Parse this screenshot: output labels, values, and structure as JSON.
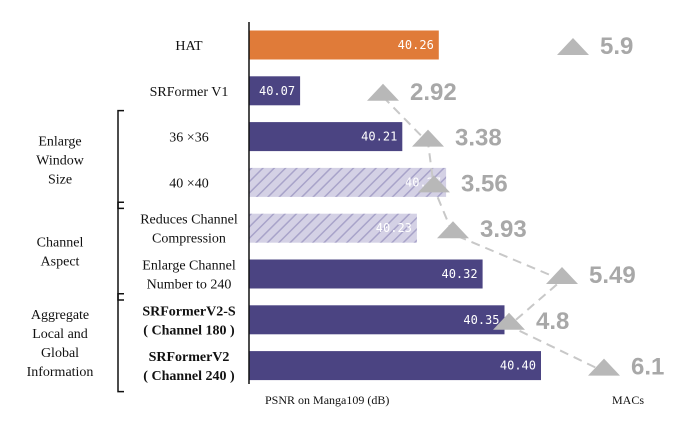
{
  "chart_data": {
    "type": "bar",
    "orientation": "horizontal",
    "rows": [
      {
        "label": [
          "HAT"
        ],
        "value": 40.26,
        "value_text": "40.26",
        "macs": 5.9,
        "macs_text": "5.9",
        "style": "orange",
        "bold": false
      },
      {
        "label": [
          "SRFormer V1"
        ],
        "value": 40.07,
        "value_text": "40.07",
        "macs": 2.92,
        "macs_text": "2.92",
        "style": "solid",
        "bold": false
      },
      {
        "label": [
          "36 ×36"
        ],
        "value": 40.21,
        "value_text": "40.21",
        "macs": 3.38,
        "macs_text": "3.38",
        "style": "solid",
        "bold": false
      },
      {
        "label": [
          "40 ×40"
        ],
        "value": 40.27,
        "value_text": "40.27",
        "macs": 3.56,
        "macs_text": "3.56",
        "style": "hatched",
        "bold": false
      },
      {
        "label": [
          "Reduces Channel",
          "Compression"
        ],
        "value": 40.23,
        "value_text": "40.23",
        "macs": 3.93,
        "macs_text": "3.93",
        "style": "hatched",
        "bold": false
      },
      {
        "label": [
          "Enlarge Channel",
          "Number to 240"
        ],
        "value": 40.32,
        "value_text": "40.32",
        "macs": 5.49,
        "macs_text": "5.49",
        "style": "solid",
        "bold": false
      },
      {
        "label": [
          "SRFormerV2-S",
          "( Channel 180 )"
        ],
        "value": 40.35,
        "value_text": "40.35",
        "macs": 4.8,
        "macs_text": "4.8",
        "style": "solid",
        "bold": true
      },
      {
        "label": [
          "SRFormerV2",
          "( Channel 240 )"
        ],
        "value": 40.4,
        "value_text": "40.40",
        "macs": 6.1,
        "macs_text": "6.1",
        "style": "solid",
        "bold": true
      }
    ],
    "groups": [
      {
        "label": [
          "Enlarge",
          "Window",
          "Size"
        ],
        "rows": [
          2,
          3
        ]
      },
      {
        "label": [
          "Channel",
          "Aspect"
        ],
        "rows": [
          4,
          5
        ]
      },
      {
        "label": [
          "Aggregate",
          "Local and",
          "Global",
          "Information"
        ],
        "rows": [
          6,
          7
        ]
      }
    ],
    "xlabel": "PSNR on Manga109 (dB)",
    "xlabel2": "MACs",
    "colors": {
      "solid": "#4b4482",
      "orange": "#e07b39",
      "hatched_fill": "#d4d1e5",
      "hatched_line": "#a8a3c9",
      "marker": "#b8b8b8",
      "connector": "#c8c8c8"
    }
  }
}
